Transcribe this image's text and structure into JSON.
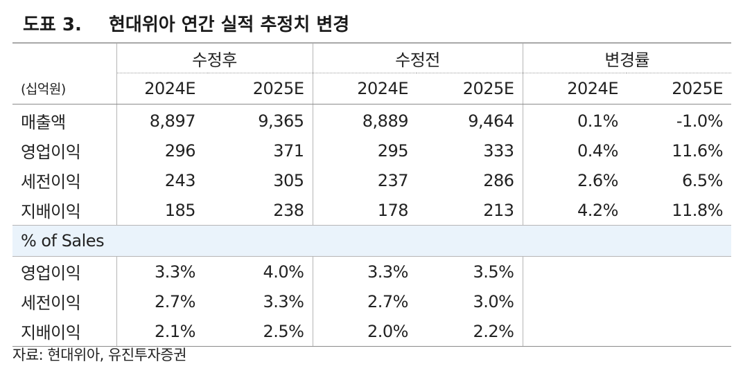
{
  "title": {
    "figure": "도표 3.",
    "text": "현대위아 연간 실적 추정치 변경"
  },
  "table": {
    "unit": "(십억원)",
    "groups": [
      "수정후",
      "수정전",
      "변경률"
    ],
    "years": [
      "2024E",
      "2025E",
      "2024E",
      "2025E",
      "2024E",
      "2025E"
    ],
    "rows": [
      {
        "label": "매출액",
        "values": [
          "8,897",
          "9,365",
          "8,889",
          "9,464",
          "0.1%",
          "-1.0%"
        ]
      },
      {
        "label": "영업이익",
        "values": [
          "296",
          "371",
          "295",
          "333",
          "0.4%",
          "11.6%"
        ]
      },
      {
        "label": "세전이익",
        "values": [
          "243",
          "305",
          "237",
          "286",
          "2.6%",
          "6.5%"
        ]
      },
      {
        "label": "지배이익",
        "values": [
          "185",
          "238",
          "178",
          "213",
          "4.2%",
          "11.8%"
        ]
      }
    ],
    "section_label": "% of Sales",
    "margin_rows": [
      {
        "label": "영업이익",
        "values": [
          "3.3%",
          "4.0%",
          "3.3%",
          "3.5%"
        ]
      },
      {
        "label": "세전이익",
        "values": [
          "2.7%",
          "3.3%",
          "2.7%",
          "3.0%"
        ]
      },
      {
        "label": "지배이익",
        "values": [
          "2.1%",
          "2.5%",
          "2.0%",
          "2.2%"
        ]
      }
    ]
  },
  "source": "자료: 현대위아, 유진투자증권"
}
